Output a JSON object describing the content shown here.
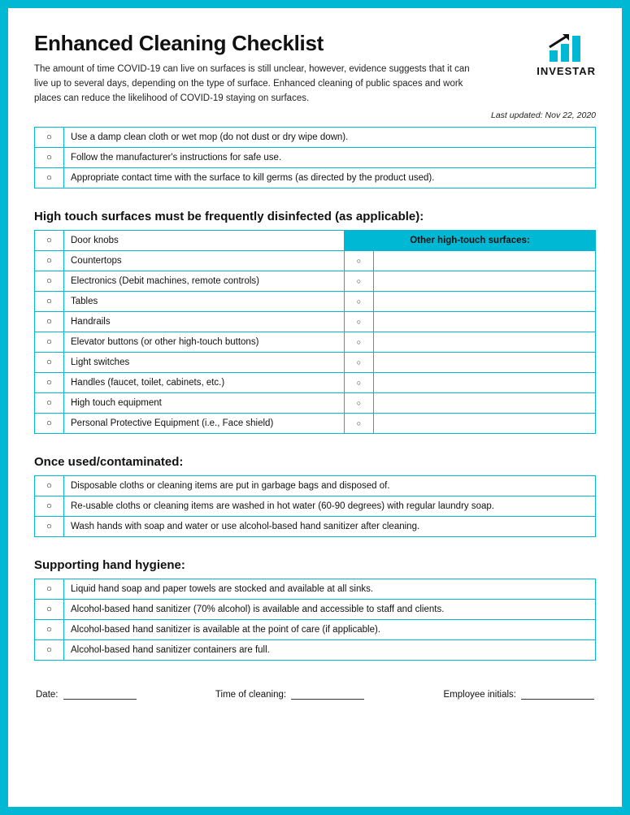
{
  "colors": {
    "brand": "#00b8d4",
    "text": "#111111",
    "border": "#00b8d4"
  },
  "logo": {
    "name": "INVESTAR"
  },
  "title": "Enhanced Cleaning Checklist",
  "intro": "The amount of time COVID-19 can live on surfaces is still unclear, however, evidence suggests that it can live up to several days, depending on the type of surface. Enhanced cleaning of public spaces and work places can reduce the likelihood of COVID-19 staying on surfaces.",
  "last_updated": "Last updated: Nov 22, 2020",
  "sections": {
    "general": {
      "items": [
        "Use a damp clean cloth or wet mop (do not dust or dry wipe down).",
        "Follow the manufacturer's instructions for safe use.",
        "Appropriate contact time with the surface to kill germs (as directed by the product used)."
      ]
    },
    "high_touch": {
      "heading": "High touch surfaces must be frequently disinfected (as applicable):",
      "other_header": "Other high-touch surfaces:",
      "items": [
        "Door knobs",
        "Countertops",
        "Electronics (Debit machines, remote controls)",
        "Tables",
        "Handrails",
        "Elevator buttons (or other high-touch buttons)",
        "Light switches",
        "Handles (faucet, toilet, cabinets, etc.)",
        "High touch equipment",
        "Personal Protective Equipment (i.e., Face shield)"
      ]
    },
    "once_used": {
      "heading": "Once used/contaminated:",
      "items": [
        "Disposable cloths or cleaning items are put in garbage bags and disposed of.",
        "Re-usable cloths or cleaning items are washed in hot water (60-90 degrees) with regular laundry soap.",
        "Wash hands with soap and water or use alcohol-based hand sanitizer after cleaning."
      ]
    },
    "hand_hygiene": {
      "heading": "Supporting hand hygiene:",
      "items": [
        "Liquid hand soap and paper towels are stocked and available at all sinks.",
        "Alcohol-based hand sanitizer (70% alcohol) is available and accessible to staff and clients.",
        "Alcohol-based hand sanitizer is available at the point of care (if applicable).",
        "Alcohol-based hand sanitizer containers are full."
      ]
    }
  },
  "signoff": {
    "date_label": "Date:",
    "time_label": "Time of cleaning:",
    "initials_label": "Employee initials:"
  },
  "checkbox_glyph": "○"
}
